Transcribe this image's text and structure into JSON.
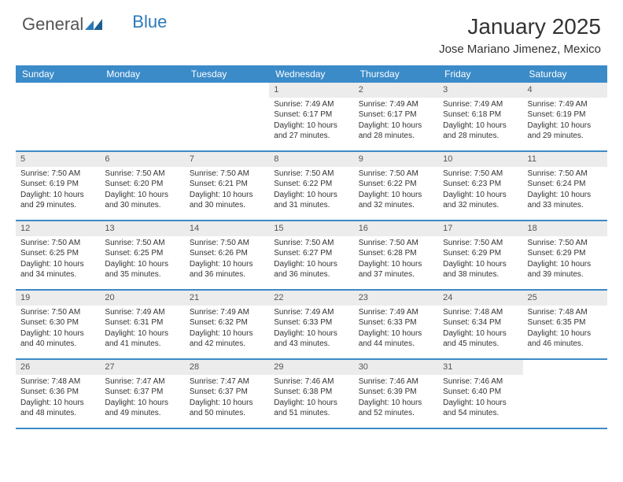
{
  "logo": {
    "text1": "General",
    "text2": "Blue"
  },
  "title": "January 2025",
  "location": "Jose Mariano Jimenez, Mexico",
  "colors": {
    "header_bg": "#3b8bc9",
    "header_text": "#ffffff",
    "daynum_bg": "#ececec",
    "text": "#333333"
  },
  "daysOfWeek": [
    "Sunday",
    "Monday",
    "Tuesday",
    "Wednesday",
    "Thursday",
    "Friday",
    "Saturday"
  ],
  "grid": [
    [
      {
        "n": "",
        "sunrise": "",
        "sunset": "",
        "day_h": "",
        "day_m": ""
      },
      {
        "n": "",
        "sunrise": "",
        "sunset": "",
        "day_h": "",
        "day_m": ""
      },
      {
        "n": "",
        "sunrise": "",
        "sunset": "",
        "day_h": "",
        "day_m": ""
      },
      {
        "n": "1",
        "sunrise": "7:49 AM",
        "sunset": "6:17 PM",
        "day_h": "10",
        "day_m": "27"
      },
      {
        "n": "2",
        "sunrise": "7:49 AM",
        "sunset": "6:17 PM",
        "day_h": "10",
        "day_m": "28"
      },
      {
        "n": "3",
        "sunrise": "7:49 AM",
        "sunset": "6:18 PM",
        "day_h": "10",
        "day_m": "28"
      },
      {
        "n": "4",
        "sunrise": "7:49 AM",
        "sunset": "6:19 PM",
        "day_h": "10",
        "day_m": "29"
      }
    ],
    [
      {
        "n": "5",
        "sunrise": "7:50 AM",
        "sunset": "6:19 PM",
        "day_h": "10",
        "day_m": "29"
      },
      {
        "n": "6",
        "sunrise": "7:50 AM",
        "sunset": "6:20 PM",
        "day_h": "10",
        "day_m": "30"
      },
      {
        "n": "7",
        "sunrise": "7:50 AM",
        "sunset": "6:21 PM",
        "day_h": "10",
        "day_m": "30"
      },
      {
        "n": "8",
        "sunrise": "7:50 AM",
        "sunset": "6:22 PM",
        "day_h": "10",
        "day_m": "31"
      },
      {
        "n": "9",
        "sunrise": "7:50 AM",
        "sunset": "6:22 PM",
        "day_h": "10",
        "day_m": "32"
      },
      {
        "n": "10",
        "sunrise": "7:50 AM",
        "sunset": "6:23 PM",
        "day_h": "10",
        "day_m": "32"
      },
      {
        "n": "11",
        "sunrise": "7:50 AM",
        "sunset": "6:24 PM",
        "day_h": "10",
        "day_m": "33"
      }
    ],
    [
      {
        "n": "12",
        "sunrise": "7:50 AM",
        "sunset": "6:25 PM",
        "day_h": "10",
        "day_m": "34"
      },
      {
        "n": "13",
        "sunrise": "7:50 AM",
        "sunset": "6:25 PM",
        "day_h": "10",
        "day_m": "35"
      },
      {
        "n": "14",
        "sunrise": "7:50 AM",
        "sunset": "6:26 PM",
        "day_h": "10",
        "day_m": "36"
      },
      {
        "n": "15",
        "sunrise": "7:50 AM",
        "sunset": "6:27 PM",
        "day_h": "10",
        "day_m": "36"
      },
      {
        "n": "16",
        "sunrise": "7:50 AM",
        "sunset": "6:28 PM",
        "day_h": "10",
        "day_m": "37"
      },
      {
        "n": "17",
        "sunrise": "7:50 AM",
        "sunset": "6:29 PM",
        "day_h": "10",
        "day_m": "38"
      },
      {
        "n": "18",
        "sunrise": "7:50 AM",
        "sunset": "6:29 PM",
        "day_h": "10",
        "day_m": "39"
      }
    ],
    [
      {
        "n": "19",
        "sunrise": "7:50 AM",
        "sunset": "6:30 PM",
        "day_h": "10",
        "day_m": "40"
      },
      {
        "n": "20",
        "sunrise": "7:49 AM",
        "sunset": "6:31 PM",
        "day_h": "10",
        "day_m": "41"
      },
      {
        "n": "21",
        "sunrise": "7:49 AM",
        "sunset": "6:32 PM",
        "day_h": "10",
        "day_m": "42"
      },
      {
        "n": "22",
        "sunrise": "7:49 AM",
        "sunset": "6:33 PM",
        "day_h": "10",
        "day_m": "43"
      },
      {
        "n": "23",
        "sunrise": "7:49 AM",
        "sunset": "6:33 PM",
        "day_h": "10",
        "day_m": "44"
      },
      {
        "n": "24",
        "sunrise": "7:48 AM",
        "sunset": "6:34 PM",
        "day_h": "10",
        "day_m": "45"
      },
      {
        "n": "25",
        "sunrise": "7:48 AM",
        "sunset": "6:35 PM",
        "day_h": "10",
        "day_m": "46"
      }
    ],
    [
      {
        "n": "26",
        "sunrise": "7:48 AM",
        "sunset": "6:36 PM",
        "day_h": "10",
        "day_m": "48"
      },
      {
        "n": "27",
        "sunrise": "7:47 AM",
        "sunset": "6:37 PM",
        "day_h": "10",
        "day_m": "49"
      },
      {
        "n": "28",
        "sunrise": "7:47 AM",
        "sunset": "6:37 PM",
        "day_h": "10",
        "day_m": "50"
      },
      {
        "n": "29",
        "sunrise": "7:46 AM",
        "sunset": "6:38 PM",
        "day_h": "10",
        "day_m": "51"
      },
      {
        "n": "30",
        "sunrise": "7:46 AM",
        "sunset": "6:39 PM",
        "day_h": "10",
        "day_m": "52"
      },
      {
        "n": "31",
        "sunrise": "7:46 AM",
        "sunset": "6:40 PM",
        "day_h": "10",
        "day_m": "54"
      },
      {
        "n": "",
        "sunrise": "",
        "sunset": "",
        "day_h": "",
        "day_m": ""
      }
    ]
  ],
  "labels": {
    "sunrise": "Sunrise:",
    "sunset": "Sunset:",
    "daylight_prefix": "Daylight:",
    "hours_word": "hours",
    "and_word": "and",
    "minutes_word": "minutes."
  }
}
